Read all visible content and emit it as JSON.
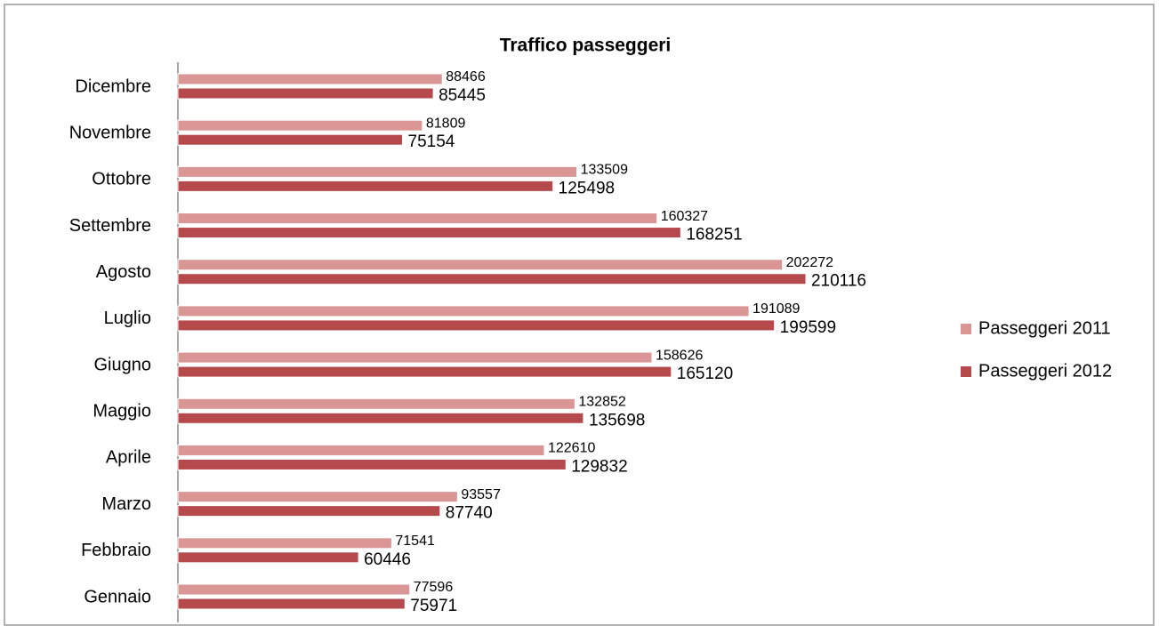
{
  "chart_data": {
    "type": "hbar",
    "title": "Traffico passeggeri",
    "categories": [
      "Gennaio",
      "Febbraio",
      "Marzo",
      "Aprile",
      "Maggio",
      "Giugno",
      "Luglio",
      "Agosto",
      "Settembre",
      "Ottobre",
      "Novembre",
      "Dicembre"
    ],
    "series": [
      {
        "name": "Passeggeri 2011",
        "color": "#d99694",
        "values": [
          77596,
          71541,
          93557,
          122610,
          132852,
          158626,
          191089,
          202272,
          160327,
          133509,
          81809,
          88466
        ]
      },
      {
        "name": "Passeggeri 2012",
        "color": "#b5494b",
        "values": [
          75971,
          60446,
          87740,
          129832,
          135698,
          165120,
          199599,
          210116,
          168251,
          125498,
          75154,
          85445
        ]
      }
    ],
    "xlim": [
      0,
      250000
    ],
    "legend": "right"
  }
}
